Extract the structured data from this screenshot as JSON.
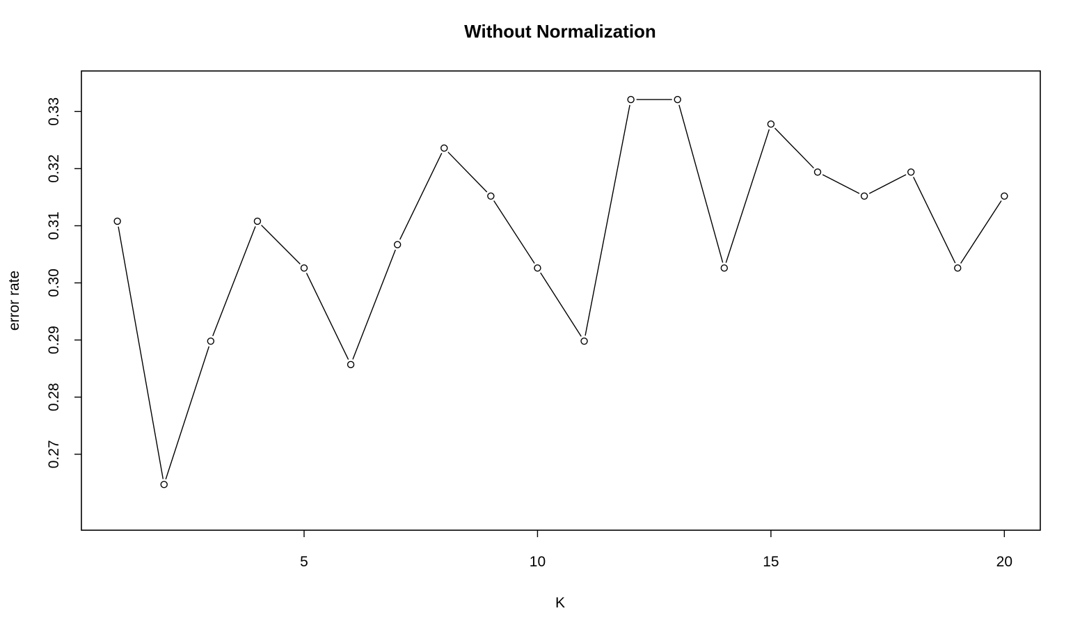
{
  "chart_data": {
    "type": "line",
    "title": "Without Normalization",
    "xlabel": "K",
    "ylabel": "error rate",
    "x": [
      1,
      2,
      3,
      4,
      5,
      6,
      7,
      8,
      9,
      10,
      11,
      12,
      13,
      14,
      15,
      16,
      17,
      18,
      19,
      20
    ],
    "series": [
      {
        "values": [
          0.3108,
          0.2647,
          0.2898,
          0.3108,
          0.3026,
          0.2857,
          0.3067,
          0.3236,
          0.3152,
          0.3026,
          0.2898,
          0.3321,
          0.3321,
          0.3026,
          0.3278,
          0.3194,
          0.3152,
          0.3194,
          0.3026,
          0.3152
        ],
        "color": "#000000",
        "marker": "open-circle"
      }
    ],
    "xticks": [
      "5",
      "10",
      "15",
      "20"
    ],
    "yticks": [
      "0.27",
      "0.28",
      "0.29",
      "0.30",
      "0.31",
      "0.32",
      "0.33"
    ],
    "xlim": [
      0.23,
      20.77
    ],
    "ylim": [
      0.2567,
      0.3371
    ],
    "grid": false,
    "legend": "none"
  }
}
